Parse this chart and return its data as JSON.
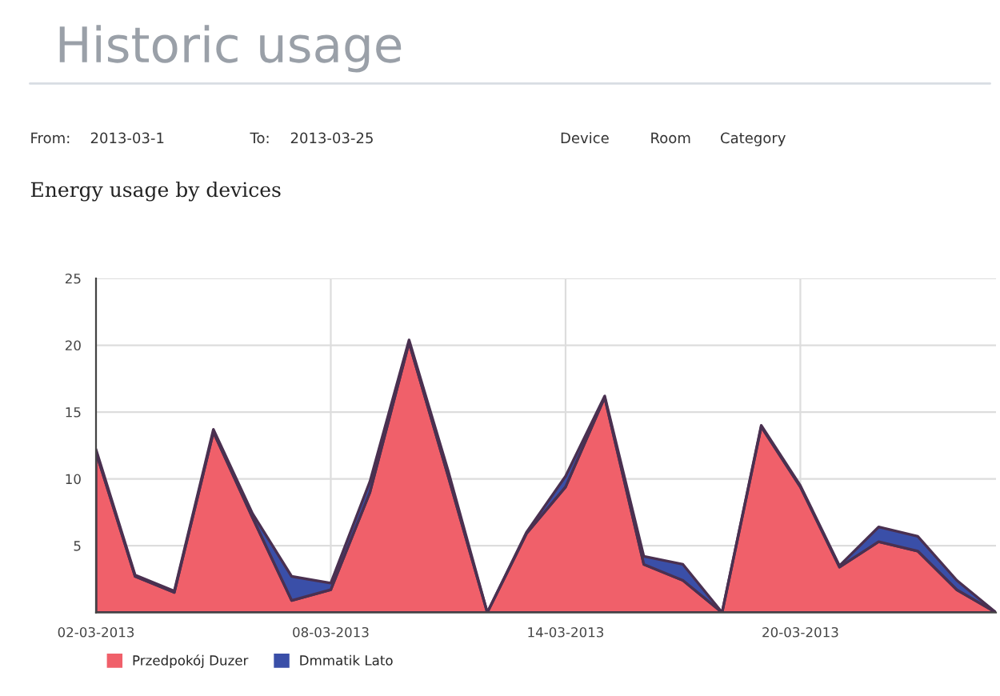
{
  "chart_data": {
    "type": "area",
    "title": "Historic usage",
    "subtitle": "Energy usage by devices",
    "annotations": [
      "From:",
      "2013-03-1",
      "To:",
      "2013-03-25",
      "Device",
      "Room",
      "Category"
    ],
    "x": [
      "2013-03-02",
      "2013-03-03",
      "2013-03-04",
      "2013-03-05",
      "2013-03-06",
      "2013-03-07",
      "2013-03-08",
      "2013-03-09",
      "2013-03-10",
      "2013-03-11",
      "2013-03-12",
      "2013-03-13",
      "2013-03-14",
      "2013-03-15",
      "2013-03-16",
      "2013-03-17",
      "2013-03-18",
      "2013-03-19",
      "2013-03-20",
      "2013-03-21",
      "2013-03-22",
      "2013-03-23",
      "2013-03-24",
      "2013-03-25"
    ],
    "stacked": true,
    "series": [
      {
        "name": "Przedpokój Duzer",
        "color": "#f0606a",
        "values": [
          12,
          2.7,
          1.5,
          13.5,
          7.1,
          0.9,
          1.7,
          9,
          20.2,
          10.2,
          0,
          5.9,
          9.4,
          16.1,
          3.6,
          2.4,
          0,
          13.9,
          9.4,
          3.4,
          5.3,
          4.6,
          1.7,
          0
        ]
      },
      {
        "name": "Dmmatik Lato",
        "color": "#3a4fa8",
        "values": [
          0.2,
          0.1,
          0.1,
          0.2,
          0.3,
          1.8,
          0.5,
          0.8,
          0.2,
          0.4,
          0,
          0.1,
          0.8,
          0.1,
          0.6,
          1.2,
          0,
          0.1,
          0.1,
          0.1,
          1.1,
          1.1,
          0.7,
          0
        ]
      }
    ],
    "xlim": [
      "2013-03-02",
      "2013-03-25"
    ],
    "xticks": [
      {
        "value": "2013-03-02",
        "label": "02-03-2013"
      },
      {
        "value": "2013-03-08",
        "label": "08-03-2013"
      },
      {
        "value": "2013-03-14",
        "label": "14-03-2013"
      },
      {
        "value": "2013-03-20",
        "label": "20-03-2013"
      }
    ],
    "ylim": [
      0,
      25
    ],
    "yticks": [
      5,
      10,
      15,
      20,
      25
    ],
    "grid": true,
    "legend": "bottom left"
  }
}
